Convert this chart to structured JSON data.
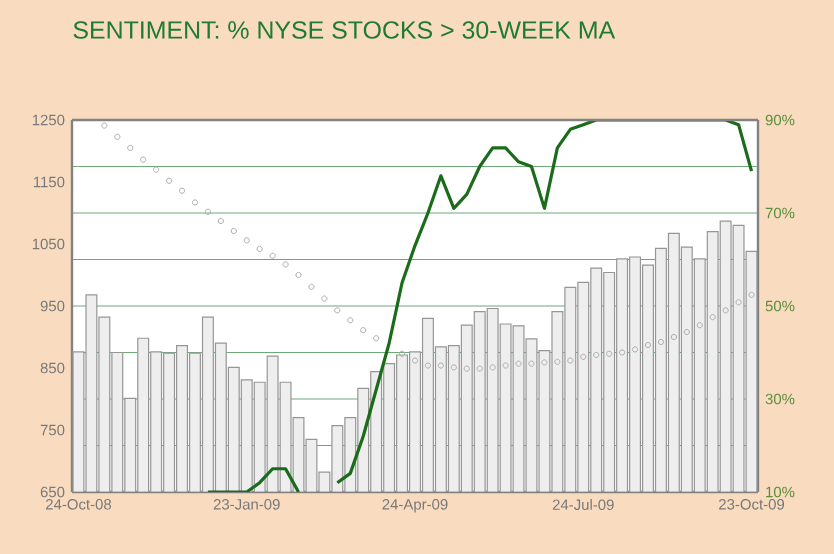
{
  "chart_data": {
    "type": "bar",
    "title": "SENTIMENT: % NYSE STOCKS > 30-WEEK MA",
    "categories": [
      "24-Oct-08",
      null,
      null,
      null,
      null,
      null,
      null,
      null,
      null,
      null,
      null,
      null,
      null,
      "23-Jan-09",
      null,
      null,
      null,
      null,
      null,
      null,
      null,
      null,
      null,
      null,
      null,
      null,
      "24-Apr-09",
      null,
      null,
      null,
      null,
      null,
      null,
      null,
      null,
      null,
      null,
      null,
      null,
      "24-Jul-09",
      null,
      null,
      null,
      null,
      null,
      null,
      null,
      null,
      null,
      null,
      null,
      null,
      "23-Oct-09"
    ],
    "series": [
      {
        "color": "#eeeeee",
        "values": [
          876,
          968,
          932,
          875,
          801,
          898,
          876,
          874,
          886,
          874,
          932,
          890,
          851,
          831,
          827,
          869,
          827,
          770,
          735,
          682,
          757,
          770,
          817,
          844,
          857,
          871,
          876,
          930,
          884,
          886,
          919,
          941,
          946,
          921,
          918,
          897,
          878,
          941,
          980,
          988,
          1011,
          1004,
          1026,
          1029,
          1016,
          1043,
          1067,
          1045,
          1026,
          1070,
          1087,
          1080,
          1038
        ]
      },
      {
        "type": "scatter",
        "marker": "circle",
        "color": "#aaaaaa",
        "values": [
          null,
          null,
          1241,
          1223,
          1205,
          1186,
          1170,
          1152,
          1136,
          1117,
          1102,
          1087,
          1071,
          1056,
          1042,
          1031,
          1017,
          1000,
          981,
          962,
          943,
          927,
          911,
          898,
          null,
          873,
          862,
          854,
          854,
          851,
          849,
          849,
          851,
          854,
          857,
          857,
          859,
          860,
          862,
          868,
          871,
          873,
          875,
          880,
          887,
          892,
          900,
          908,
          919,
          932,
          943,
          956,
          968
        ]
      },
      {
        "type": "line",
        "axis": "y2",
        "color": "#1a6b1a",
        "values": [
          null,
          null,
          null,
          null,
          null,
          null,
          null,
          null,
          null,
          null,
          10,
          10,
          10,
          10,
          12,
          15,
          15,
          10,
          null,
          null,
          12,
          14,
          22,
          32,
          42,
          55,
          63,
          70,
          78,
          71,
          74,
          80,
          84,
          84,
          81,
          80,
          71,
          84,
          88,
          89,
          90,
          90,
          90,
          90,
          90,
          90,
          90,
          90,
          90,
          90,
          90,
          89,
          79
        ]
      }
    ],
    "ylim": [
      650,
      1250
    ],
    "yticks": [
      650,
      750,
      850,
      950,
      1050,
      1150,
      1250
    ],
    "y2lim": [
      10,
      90
    ],
    "y2ticks": [
      {
        "value": 10,
        "label": "10%"
      },
      {
        "value": 20,
        "label": null
      },
      {
        "value": 30,
        "label": "30%"
      },
      {
        "value": 40,
        "label": null
      },
      {
        "value": 50,
        "label": "50%"
      },
      {
        "value": 60,
        "label": null
      },
      {
        "value": 70,
        "label": "70%"
      },
      {
        "value": 80,
        "label": null
      },
      {
        "value": 90,
        "label": "90%"
      }
    ],
    "grid": "y"
  }
}
